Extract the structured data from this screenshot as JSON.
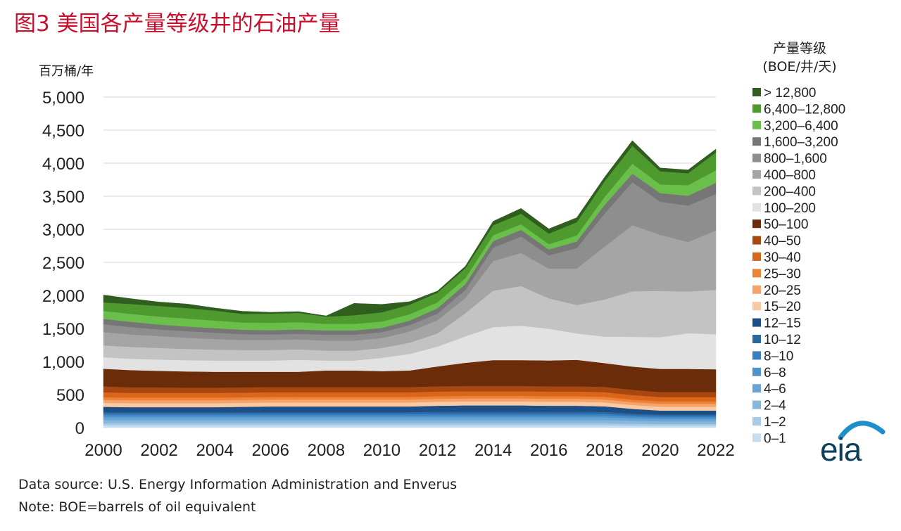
{
  "title": "图3 美国各产量等级井的石油产量",
  "footer": {
    "source": "Data source: U.S. Energy Information Administration and Enverus",
    "note": "Note: BOE=barrels of oil equivalent"
  },
  "logo": {
    "text": "eia",
    "arc_color": "#1f8fc9"
  },
  "chart_data": {
    "type": "area",
    "stacked": true,
    "ylabel": "百万桶/年",
    "xlabel": "",
    "ylim": [
      0,
      5000
    ],
    "yticks": [
      "0",
      "500",
      "1,000",
      "1,500",
      "2,000",
      "2,500",
      "3,000",
      "3,500",
      "4,000",
      "4,500",
      "5,000"
    ],
    "xticks": [
      "2000",
      "2002",
      "2004",
      "2006",
      "2008",
      "2010",
      "2012",
      "2014",
      "2016",
      "2018",
      "2020",
      "2022"
    ],
    "grid": true,
    "legend_title": [
      "产量等级",
      "(BOE/井/天)"
    ],
    "legend_placement": "right",
    "x": [
      2000,
      2001,
      2002,
      2003,
      2004,
      2005,
      2006,
      2007,
      2008,
      2009,
      2010,
      2011,
      2012,
      2013,
      2014,
      2015,
      2016,
      2017,
      2018,
      2019,
      2020,
      2021,
      2022
    ],
    "series": [
      {
        "name": "0–1",
        "color": "#c6dcef",
        "values": [
          35,
          35,
          35,
          35,
          35,
          35,
          35,
          35,
          35,
          35,
          35,
          35,
          35,
          35,
          35,
          35,
          35,
          35,
          35,
          30,
          30,
          30,
          30
        ]
      },
      {
        "name": "1–2",
        "color": "#a8cbe7",
        "values": [
          30,
          30,
          30,
          30,
          30,
          30,
          30,
          30,
          30,
          30,
          30,
          30,
          30,
          30,
          30,
          30,
          30,
          30,
          30,
          28,
          25,
          25,
          25
        ]
      },
      {
        "name": "2–4",
        "color": "#86b6de",
        "values": [
          50,
          50,
          50,
          50,
          50,
          50,
          50,
          50,
          50,
          50,
          50,
          50,
          50,
          50,
          50,
          50,
          50,
          50,
          50,
          45,
          42,
          42,
          42
        ]
      },
      {
        "name": "4–6",
        "color": "#6aa4d4",
        "values": [
          40,
          40,
          40,
          40,
          40,
          40,
          40,
          40,
          40,
          40,
          40,
          40,
          40,
          40,
          40,
          40,
          40,
          40,
          40,
          36,
          33,
          33,
          33
        ]
      },
      {
        "name": "6–8",
        "color": "#4f93cb",
        "values": [
          30,
          30,
          30,
          30,
          30,
          30,
          30,
          30,
          30,
          30,
          30,
          30,
          30,
          30,
          30,
          30,
          30,
          30,
          30,
          27,
          25,
          25,
          25
        ]
      },
      {
        "name": "8–10",
        "color": "#3a7fbd",
        "values": [
          25,
          25,
          25,
          25,
          25,
          25,
          25,
          25,
          25,
          25,
          25,
          25,
          28,
          28,
          28,
          28,
          28,
          28,
          26,
          24,
          22,
          22,
          22
        ]
      },
      {
        "name": "10–12",
        "color": "#2a67a3",
        "values": [
          25,
          25,
          25,
          25,
          25,
          25,
          25,
          25,
          25,
          25,
          25,
          25,
          28,
          28,
          28,
          28,
          28,
          28,
          26,
          24,
          22,
          22,
          22
        ]
      },
      {
        "name": "12–15",
        "color": "#1c4f86",
        "values": [
          80,
          75,
          75,
          75,
          75,
          80,
          85,
          85,
          85,
          85,
          85,
          85,
          90,
          95,
          95,
          95,
          90,
          90,
          85,
          70,
          60,
          60,
          60
        ]
      },
      {
        "name": "15–20",
        "color": "#f9c9a2",
        "values": [
          60,
          60,
          60,
          60,
          60,
          60,
          60,
          60,
          60,
          60,
          60,
          60,
          60,
          60,
          60,
          60,
          60,
          60,
          60,
          58,
          58,
          58,
          58
        ]
      },
      {
        "name": "20–25",
        "color": "#f5a36a",
        "values": [
          45,
          45,
          45,
          45,
          45,
          45,
          45,
          45,
          45,
          45,
          45,
          45,
          45,
          45,
          45,
          45,
          45,
          45,
          45,
          43,
          43,
          43,
          43
        ]
      },
      {
        "name": "25–30",
        "color": "#ee8236",
        "values": [
          40,
          40,
          40,
          40,
          40,
          40,
          40,
          40,
          40,
          40,
          40,
          40,
          40,
          40,
          40,
          40,
          40,
          40,
          40,
          38,
          38,
          38,
          38
        ]
      },
      {
        "name": "30–40",
        "color": "#d9661b",
        "values": [
          75,
          70,
          70,
          70,
          70,
          70,
          70,
          70,
          70,
          70,
          70,
          70,
          70,
          70,
          70,
          70,
          70,
          70,
          70,
          70,
          65,
          65,
          65
        ]
      },
      {
        "name": "40–50",
        "color": "#a8470f",
        "values": [
          90,
          85,
          85,
          80,
          80,
          80,
          80,
          80,
          80,
          80,
          80,
          80,
          80,
          80,
          80,
          80,
          80,
          80,
          80,
          80,
          75,
          75,
          75
        ]
      },
      {
        "name": "50–100",
        "color": "#6b2d09",
        "values": [
          265,
          260,
          250,
          245,
          240,
          235,
          230,
          230,
          250,
          250,
          240,
          250,
          300,
          350,
          390,
          390,
          390,
          400,
          360,
          350,
          350,
          350,
          345
        ]
      },
      {
        "name": "100–200",
        "color": "#e2e2e2",
        "values": [
          175,
          170,
          170,
          170,
          170,
          170,
          170,
          180,
          150,
          150,
          200,
          250,
          300,
          400,
          500,
          520,
          480,
          400,
          400,
          450,
          480,
          540,
          530
        ]
      },
      {
        "name": "200–400",
        "color": "#c3c3c3",
        "values": [
          180,
          180,
          175,
          170,
          165,
          160,
          160,
          160,
          150,
          150,
          150,
          170,
          200,
          350,
          550,
          600,
          460,
          430,
          560,
          690,
          700,
          630,
          670
        ]
      },
      {
        "name": "400–800",
        "color": "#a5a5a5",
        "values": [
          200,
          190,
          180,
          170,
          160,
          150,
          150,
          150,
          150,
          150,
          150,
          170,
          200,
          230,
          450,
          500,
          450,
          550,
          800,
          1000,
          850,
          750,
          900
        ]
      },
      {
        "name": "800–1,600",
        "color": "#8e8e8e",
        "values": [
          120,
          110,
          100,
          100,
          95,
          90,
          85,
          85,
          90,
          90,
          90,
          95,
          100,
          120,
          200,
          250,
          200,
          310,
          500,
          650,
          500,
          550,
          550
        ]
      },
      {
        "name": "1,600–3,200",
        "color": "#767676",
        "values": [
          80,
          80,
          75,
          70,
          70,
          65,
          65,
          65,
          65,
          65,
          65,
          70,
          80,
          90,
          100,
          100,
          90,
          100,
          130,
          130,
          130,
          150,
          170
        ]
      },
      {
        "name": "3,200–6,400",
        "color": "#6abf4b",
        "values": [
          120,
          120,
          120,
          120,
          115,
          110,
          110,
          110,
          100,
          100,
          95,
          95,
          90,
          90,
          90,
          85,
          80,
          90,
          120,
          150,
          130,
          160,
          190
        ]
      },
      {
        "name": "6,400–12,800",
        "color": "#4e9a2f",
        "values": [
          130,
          150,
          160,
          160,
          150,
          130,
          140,
          140,
          110,
          130,
          140,
          145,
          145,
          150,
          150,
          160,
          160,
          200,
          240,
          270,
          200,
          180,
          270
        ]
      },
      {
        "name": "> 12,800",
        "color": "#2f5e1e",
        "values": [
          110,
          80,
          60,
          60,
          40,
          40,
          20,
          20,
          10,
          180,
          120,
          45,
          25,
          30,
          60,
          80,
          70,
          70,
          60,
          80,
          50,
          50,
          50
        ]
      }
    ]
  }
}
